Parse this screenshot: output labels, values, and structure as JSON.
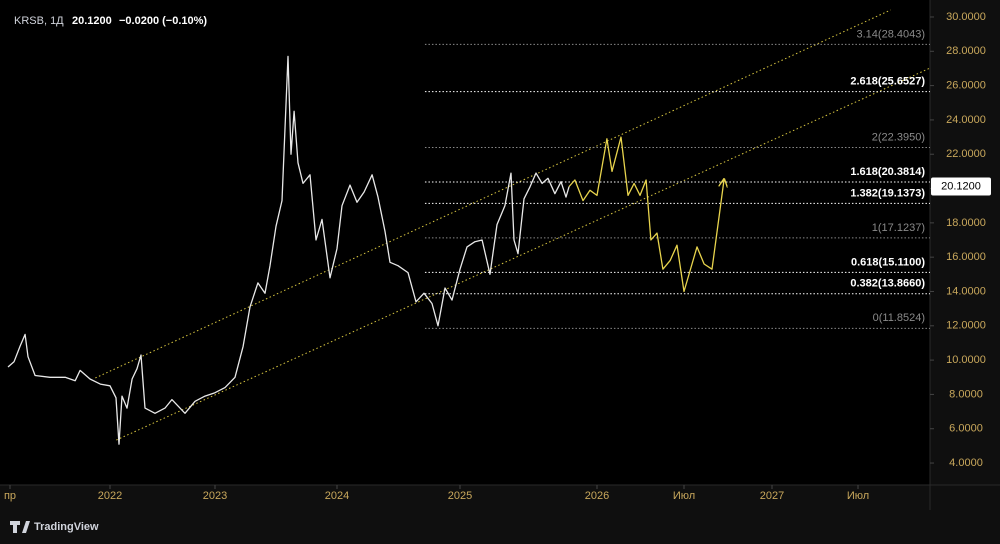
{
  "header": {
    "symbol": "KRSB, 1Д",
    "price": "20.1200",
    "change": "−0.0200 (−0.10%)"
  },
  "logo": "TradingView",
  "chart_data": {
    "type": "line",
    "ylim": [
      2.72,
      30.99
    ],
    "yticks": [
      {
        "value": 4,
        "label": "4.0000"
      },
      {
        "value": 6,
        "label": "6.0000"
      },
      {
        "value": 8,
        "label": "8.0000"
      },
      {
        "value": 10,
        "label": "10.0000"
      },
      {
        "value": 12,
        "label": "12.0000"
      },
      {
        "value": 14,
        "label": "14.0000"
      },
      {
        "value": 16,
        "label": "16.0000"
      },
      {
        "value": 18,
        "label": "18.0000"
      },
      {
        "value": 20,
        "label": "20.0000"
      },
      {
        "value": 22,
        "label": "22.0000"
      },
      {
        "value": 24,
        "label": "24.0000"
      },
      {
        "value": 26,
        "label": "26.0000"
      },
      {
        "value": 28,
        "label": "28.0000"
      },
      {
        "value": 30,
        "label": "30.0000"
      }
    ],
    "xticks": [
      {
        "value": 2021.25,
        "label": "пр"
      },
      {
        "value": 2022,
        "label": "2022"
      },
      {
        "value": 2023,
        "label": "2023"
      },
      {
        "value": 2024,
        "label": "2024"
      },
      {
        "value": 2025,
        "label": "2025"
      },
      {
        "value": 2026,
        "label": "2026"
      },
      {
        "value": 2026.5,
        "label": "Июл"
      },
      {
        "value": 2027,
        "label": "2027"
      },
      {
        "value": 2027.5,
        "label": "Июл"
      }
    ],
    "series": [
      {
        "color": "#e8e8e8",
        "x": [
          2021.235,
          2021.28,
          2021.325,
          2021.363,
          2021.385,
          2021.438,
          2021.55,
          2021.664,
          2021.739,
          2021.776,
          2021.85,
          2021.927,
          2022.0,
          2022.057,
          2022.086,
          2022.114,
          2022.162,
          2022.21,
          2022.257,
          2022.295,
          2022.333,
          2022.429,
          2022.524,
          2022.59,
          2022.667,
          2022.714,
          2022.81,
          2022.905,
          2023.0,
          2023.082,
          2023.164,
          2023.23,
          2023.287,
          2023.352,
          2023.41,
          2023.451,
          2023.5,
          2023.549,
          2023.598,
          2023.623,
          2023.648,
          2023.68,
          2023.721,
          2023.779,
          2023.828,
          2023.877,
          2023.943,
          2024.0,
          2024.041,
          2024.106,
          2024.163,
          2024.22,
          2024.285,
          2024.333,
          2024.39,
          2024.431,
          2024.496,
          2024.577,
          2024.642,
          2024.707,
          2024.772,
          2024.821,
          2024.878,
          2024.935,
          2025.0,
          2025.051,
          2025.109,
          2025.161,
          2025.219,
          2025.27,
          2025.328,
          2025.372,
          2025.394,
          2025.423,
          2025.467,
          2025.511,
          2025.555,
          2025.599,
          2025.642,
          2025.693,
          2025.737,
          2025.774,
          2025.796
        ],
        "values": [
          9.6,
          9.9,
          10.8,
          11.5,
          10.2,
          9.1,
          9.0,
          9.0,
          8.8,
          9.4,
          8.9,
          8.6,
          8.5,
          7.8,
          5.1,
          7.9,
          7.2,
          8.9,
          9.5,
          10.3,
          7.2,
          6.9,
          7.2,
          7.7,
          7.2,
          6.9,
          7.6,
          7.9,
          8.1,
          8.4,
          9.0,
          10.8,
          13.1,
          14.5,
          13.9,
          15.5,
          17.8,
          19.3,
          27.7,
          22.0,
          24.5,
          21.5,
          20.3,
          20.8,
          17.0,
          18.2,
          14.8,
          16.5,
          19.0,
          20.2,
          19.2,
          19.8,
          20.8,
          19.5,
          17.5,
          15.7,
          15.5,
          15.1,
          13.4,
          13.9,
          13.3,
          12.0,
          14.2,
          13.5,
          15.3,
          16.6,
          16.9,
          17.0,
          15.0,
          17.9,
          19.0,
          20.9,
          17.0,
          16.2,
          19.4,
          20.1,
          20.9,
          20.3,
          20.6,
          19.7,
          20.4,
          19.5,
          20.12
        ]
      },
      {
        "color": "#e8d44d",
        "arrow": true,
        "x": [
          2025.796,
          2025.839,
          2025.898,
          2025.949,
          2026.0,
          2026.057,
          2026.086,
          2026.138,
          2026.178,
          2026.213,
          2026.247,
          2026.282,
          2026.31,
          2026.345,
          2026.379,
          2026.42,
          2026.46,
          2026.5,
          2026.574,
          2026.614,
          2026.659,
          2026.727
        ],
        "values": [
          20.12,
          20.5,
          19.3,
          19.9,
          19.6,
          22.9,
          21.0,
          23.0,
          19.6,
          20.3,
          19.6,
          20.5,
          17.0,
          17.4,
          15.3,
          15.8,
          16.7,
          14.0,
          16.6,
          15.6,
          15.3,
          20.5
        ]
      }
    ],
    "channel": {
      "color": "#d8c640",
      "lines": [
        {
          "x": [
            2021.89,
            2027.69
          ],
          "y": [
            8.96,
            30.41
          ]
        },
        {
          "x": [
            2022.06,
            2027.92
          ],
          "y": [
            5.34,
            27.03
          ]
        }
      ]
    },
    "fib_levels": {
      "x_start": 2024.715,
      "levels": [
        {
          "label": "3.14(28.4043)",
          "value": 28.4043,
          "emphasized": false
        },
        {
          "label": "2.618(25.6527)",
          "value": 25.6527,
          "emphasized": true
        },
        {
          "label": "2(22.3950)",
          "value": 22.395,
          "emphasized": false
        },
        {
          "label": "1.618(20.3814)",
          "value": 20.3814,
          "emphasized": true
        },
        {
          "label": "1.382(19.1373)",
          "value": 19.1373,
          "emphasized": true
        },
        {
          "label": "1(17.1237)",
          "value": 17.1237,
          "emphasized": false
        },
        {
          "label": "0.618(15.1100)",
          "value": 15.11,
          "emphasized": true
        },
        {
          "label": "0.382(13.8660)",
          "value": 13.866,
          "emphasized": true
        },
        {
          "label": "0(11.8524)",
          "value": 11.8524,
          "emphasized": false
        }
      ]
    },
    "last_price": {
      "value": 20.12,
      "label": "20.1200"
    }
  }
}
